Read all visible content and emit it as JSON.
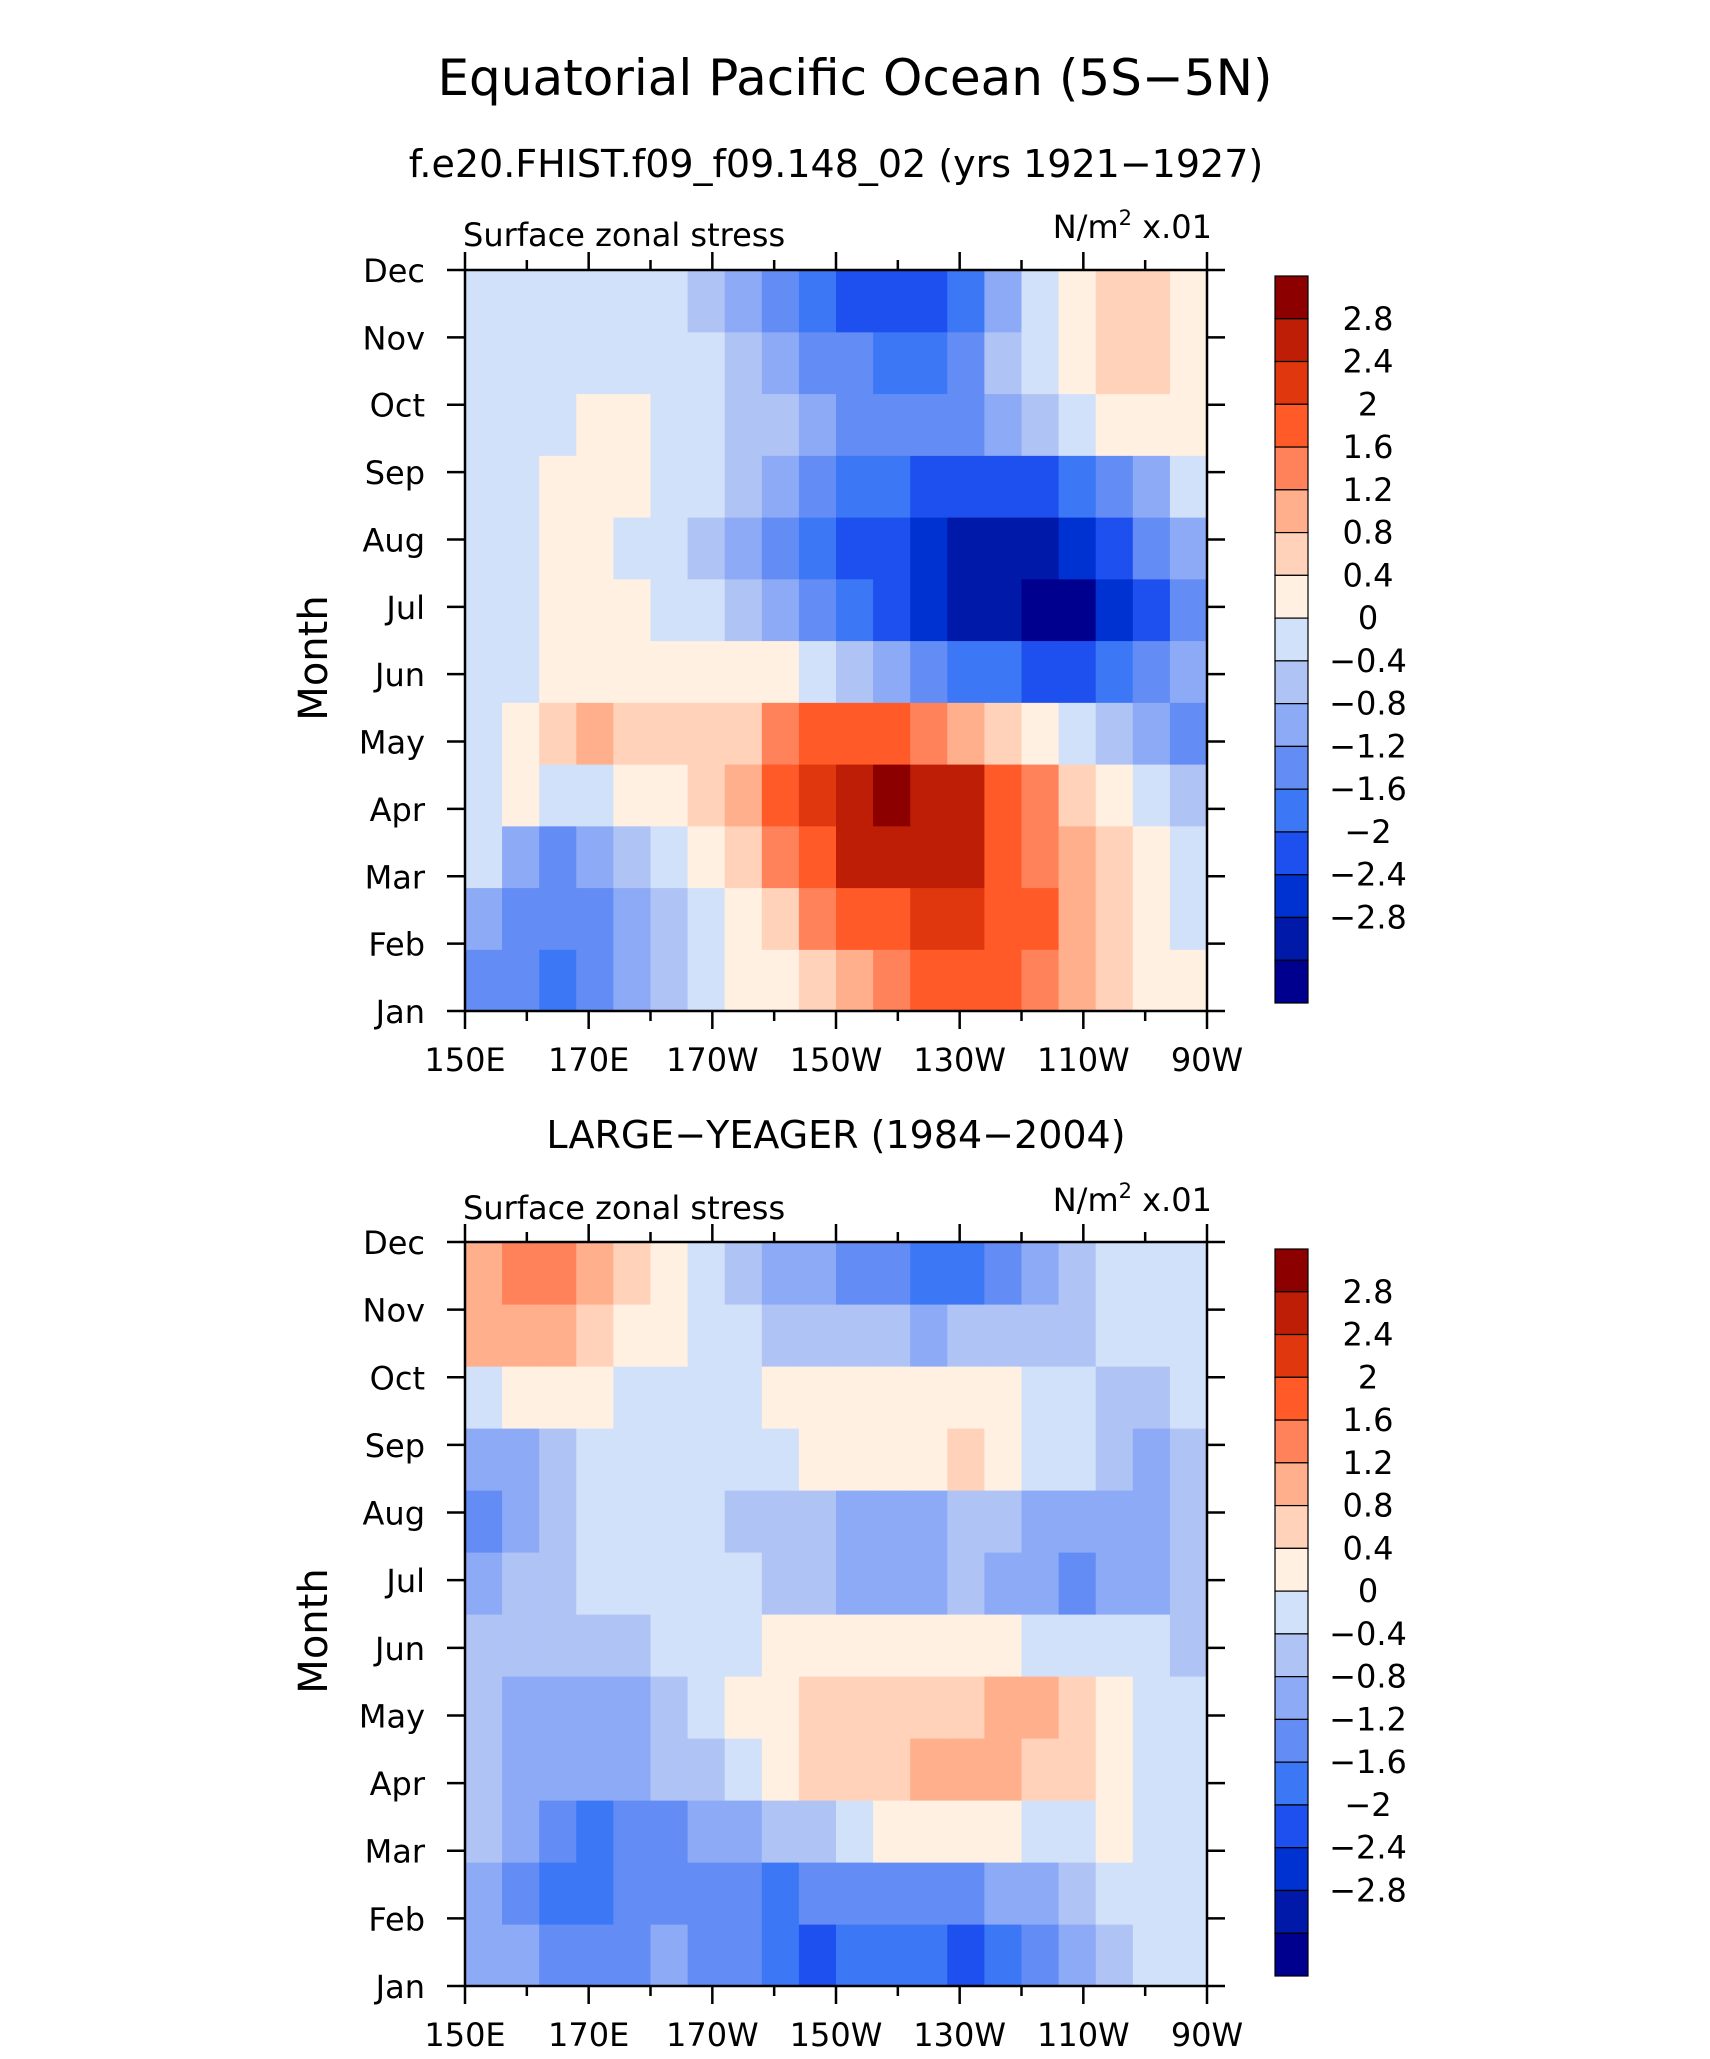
{
  "title": "Equatorial Pacific Ocean (5S−5N)",
  "chart_data": [
    {
      "type": "heatmap",
      "panel_title": "f.e20.FHIST.f09_f09.148_02 (yrs 1921−1927)",
      "left_label": "Surface zonal stress",
      "units": "N/m",
      "units_sup": "2",
      "units_scale": "x.01",
      "ylabel": "Month",
      "xticks": [
        "150E",
        "170E",
        "170W",
        "150W",
        "130W",
        "110W",
        "90W"
      ],
      "yticks": [
        "Jan",
        "Feb",
        "Mar",
        "Apr",
        "May",
        "Jun",
        "Jul",
        "Aug",
        "Sep",
        "Oct",
        "Nov",
        "Dec"
      ],
      "x_range_lon": [
        150,
        270
      ],
      "grid": [
        [
          -0.9,
          -1.1,
          -1.3,
          -1.0,
          -0.6,
          -0.3,
          0.1,
          0.4,
          0.6,
          0.9,
          1.3,
          1.8,
          2.1,
          2.3,
          2.2,
          1.9,
          1.4,
          1.0,
          0.7,
          0.4
        ],
        [
          -0.8,
          -1.0,
          -1.2,
          -0.9,
          -0.5,
          -0.1,
          0.3,
          0.6,
          1.1,
          1.6,
          2.0,
          2.3,
          2.5,
          2.4,
          2.2,
          2.0,
          1.5,
          1.0,
          0.6,
          0.3
        ],
        [
          0.2,
          -0.5,
          -0.9,
          -0.8,
          -0.2,
          0.2,
          0.6,
          1.1,
          1.6,
          2.3,
          2.8,
          2.9,
          3.0,
          2.8,
          2.3,
          1.8,
          1.3,
          0.9,
          0.5,
          0.1
        ],
        [
          0.3,
          0.4,
          0.2,
          0.1,
          0.4,
          0.6,
          0.9,
          1.3,
          2.0,
          2.6,
          3.1,
          3.2,
          3.1,
          2.8,
          2.2,
          1.6,
          1.0,
          0.6,
          0.2,
          -0.2
        ],
        [
          0.3,
          0.5,
          0.9,
          1.2,
          0.9,
          0.8,
          0.9,
          1.1,
          1.6,
          2.0,
          2.2,
          2.1,
          1.8,
          1.5,
          1.0,
          0.6,
          0.1,
          -0.3,
          -0.7,
          -1.0
        ],
        [
          0.2,
          0.3,
          0.4,
          0.4,
          0.5,
          0.6,
          0.6,
          0.5,
          0.4,
          0.1,
          -0.2,
          -0.6,
          -0.9,
          -1.3,
          -1.6,
          -1.8,
          -1.7,
          -1.4,
          -1.0,
          -0.6
        ],
        [
          0.1,
          0.3,
          0.4,
          0.6,
          0.5,
          0.3,
          0.1,
          -0.3,
          -0.8,
          -1.2,
          -1.6,
          -1.9,
          -2.1,
          -2.5,
          -2.8,
          -3.0,
          -2.9,
          -2.4,
          -1.7,
          -1.0
        ],
        [
          0.0,
          0.2,
          0.4,
          0.5,
          0.3,
          0.1,
          -0.3,
          -0.6,
          -1.0,
          -1.4,
          -1.8,
          -2.0,
          -2.2,
          -2.5,
          -2.7,
          -2.6,
          -2.3,
          -1.8,
          -1.2,
          -0.6
        ],
        [
          0.0,
          0.2,
          0.4,
          0.6,
          0.6,
          0.3,
          0.0,
          -0.3,
          -0.6,
          -0.9,
          -1.3,
          -1.6,
          -1.8,
          -2.0,
          -2.0,
          -1.8,
          -1.4,
          -1.0,
          -0.5,
          0.0
        ],
        [
          0.0,
          0.2,
          0.3,
          0.4,
          0.4,
          0.3,
          0.1,
          -0.2,
          -0.4,
          -0.6,
          -0.9,
          -1.0,
          -1.1,
          -0.9,
          -0.5,
          -0.2,
          0.2,
          0.4,
          0.5,
          0.4
        ],
        [
          0.2,
          0.3,
          0.3,
          0.3,
          0.3,
          0.2,
          0.0,
          -0.3,
          -0.6,
          -0.9,
          -1.2,
          -1.5,
          -1.5,
          -1.1,
          -0.4,
          0.2,
          0.7,
          0.9,
          0.9,
          0.6
        ],
        [
          0.3,
          0.3,
          0.3,
          0.3,
          0.2,
          0.0,
          -0.3,
          -0.6,
          -1.0,
          -1.4,
          -1.8,
          -2.0,
          -1.9,
          -1.4,
          -0.5,
          0.2,
          0.6,
          0.9,
          0.8,
          0.5
        ]
      ]
    },
    {
      "type": "heatmap",
      "panel_title": "LARGE−YEAGER (1984−2004)",
      "left_label": "Surface zonal stress",
      "units": "N/m",
      "units_sup": "2",
      "units_scale": "x.01",
      "ylabel": "Month",
      "xticks": [
        "150E",
        "170E",
        "170W",
        "150W",
        "130W",
        "110W",
        "90W"
      ],
      "yticks": [
        "Jan",
        "Feb",
        "Mar",
        "Apr",
        "May",
        "Jun",
        "Jul",
        "Aug",
        "Sep",
        "Oct",
        "Nov",
        "Dec"
      ],
      "x_range_lon": [
        150,
        270
      ],
      "grid": [
        [
          -0.5,
          -0.7,
          -0.9,
          -1.0,
          -0.9,
          -0.8,
          -0.9,
          -1.2,
          -1.5,
          -1.7,
          -1.5,
          -1.4,
          -1.6,
          -1.8,
          -1.4,
          -1.0,
          -0.6,
          -0.2,
          0.1,
          0.2
        ],
        [
          -0.6,
          -1.0,
          -1.4,
          -1.3,
          -1.2,
          -1.0,
          -1.0,
          -1.2,
          -1.3,
          -1.2,
          -1.1,
          -1.0,
          -1.1,
          -1.0,
          -0.8,
          -0.5,
          -0.2,
          0.1,
          0.2,
          0.2
        ],
        [
          -0.3,
          -0.7,
          -1.2,
          -1.4,
          -1.2,
          -0.9,
          -0.6,
          -0.5,
          -0.3,
          -0.1,
          0.2,
          0.4,
          0.5,
          0.5,
          0.4,
          0.3,
          0.3,
          0.4,
          0.3,
          0.1
        ],
        [
          -0.4,
          -0.5,
          -0.7,
          -0.8,
          -0.6,
          -0.4,
          -0.1,
          0.3,
          0.6,
          0.8,
          0.9,
          1.0,
          1.2,
          1.3,
          1.2,
          1.0,
          0.8,
          0.6,
          0.3,
          0.0
        ],
        [
          -0.3,
          -0.5,
          -0.6,
          -0.7,
          -0.5,
          -0.2,
          0.1,
          0.4,
          0.6,
          0.8,
          0.9,
          0.9,
          1.0,
          1.1,
          1.2,
          1.3,
          1.1,
          0.7,
          0.3,
          0.0
        ],
        [
          -0.2,
          -0.3,
          -0.4,
          -0.4,
          -0.2,
          0.0,
          0.1,
          0.3,
          0.4,
          0.5,
          0.5,
          0.5,
          0.5,
          0.4,
          0.4,
          0.3,
          0.2,
          0.1,
          0.0,
          -0.1
        ],
        [
          -0.6,
          -0.4,
          -0.2,
          0.0,
          0.2,
          0.2,
          0.1,
          0.0,
          -0.2,
          -0.3,
          -0.5,
          -0.6,
          -0.5,
          -0.4,
          -0.5,
          -0.7,
          -0.9,
          -0.8,
          -0.5,
          -0.2
        ],
        [
          -1.1,
          -0.6,
          -0.3,
          0.0,
          0.1,
          0.2,
          0.2,
          -0.1,
          -0.3,
          -0.4,
          -0.6,
          -0.7,
          -0.5,
          -0.3,
          -0.4,
          -0.6,
          -0.8,
          -0.8,
          -0.5,
          -0.2
        ],
        [
          -0.8,
          -0.5,
          -0.2,
          0.0,
          0.2,
          0.3,
          0.3,
          0.2,
          0.3,
          0.5,
          0.6,
          0.5,
          0.6,
          0.9,
          0.6,
          0.3,
          0.0,
          -0.3,
          -0.5,
          -0.2
        ],
        [
          0.2,
          0.5,
          0.6,
          0.4,
          0.2,
          0.1,
          0.1,
          0.2,
          0.4,
          0.6,
          0.7,
          0.5,
          0.4,
          0.6,
          0.4,
          0.2,
          0.0,
          -0.2,
          -0.3,
          0.2
        ],
        [
          1.2,
          1.5,
          1.3,
          1.0,
          0.7,
          0.4,
          0.2,
          0.0,
          -0.1,
          -0.2,
          -0.3,
          -0.4,
          -0.5,
          -0.4,
          -0.3,
          -0.2,
          -0.1,
          0.0,
          0.1,
          0.2
        ],
        [
          1.5,
          1.8,
          1.6,
          1.2,
          0.8,
          0.4,
          0.1,
          -0.3,
          -0.6,
          -0.8,
          -1.0,
          -1.1,
          -1.3,
          -1.4,
          -1.1,
          -0.7,
          -0.3,
          0.0,
          0.2,
          0.2
        ]
      ]
    }
  ],
  "colorbar": {
    "levels": [
      -3.2,
      -2.8,
      -2.4,
      -2.0,
      -1.6,
      -1.2,
      -0.8,
      -0.4,
      0,
      0.4,
      0.8,
      1.2,
      1.6,
      2.0,
      2.4,
      2.8,
      3.2
    ],
    "colors": [
      "#00008f",
      "#0019a8",
      "#0032d2",
      "#1e50f0",
      "#3c78f5",
      "#648cf5",
      "#8caaf5",
      "#afc3f5",
      "#d2e1fa",
      "#fff0e1",
      "#ffd2b9",
      "#ffaf8c",
      "#ff825a",
      "#ff5a28",
      "#e1370f",
      "#be1e05",
      "#8c0000"
    ],
    "labels": [
      "2.8",
      "2.4",
      "2",
      "1.6",
      "1.2",
      "0.8",
      "0.4",
      "0",
      "−0.4",
      "−0.8",
      "−1.2",
      "−1.6",
      "−2",
      "−2.4",
      "−2.8"
    ]
  }
}
